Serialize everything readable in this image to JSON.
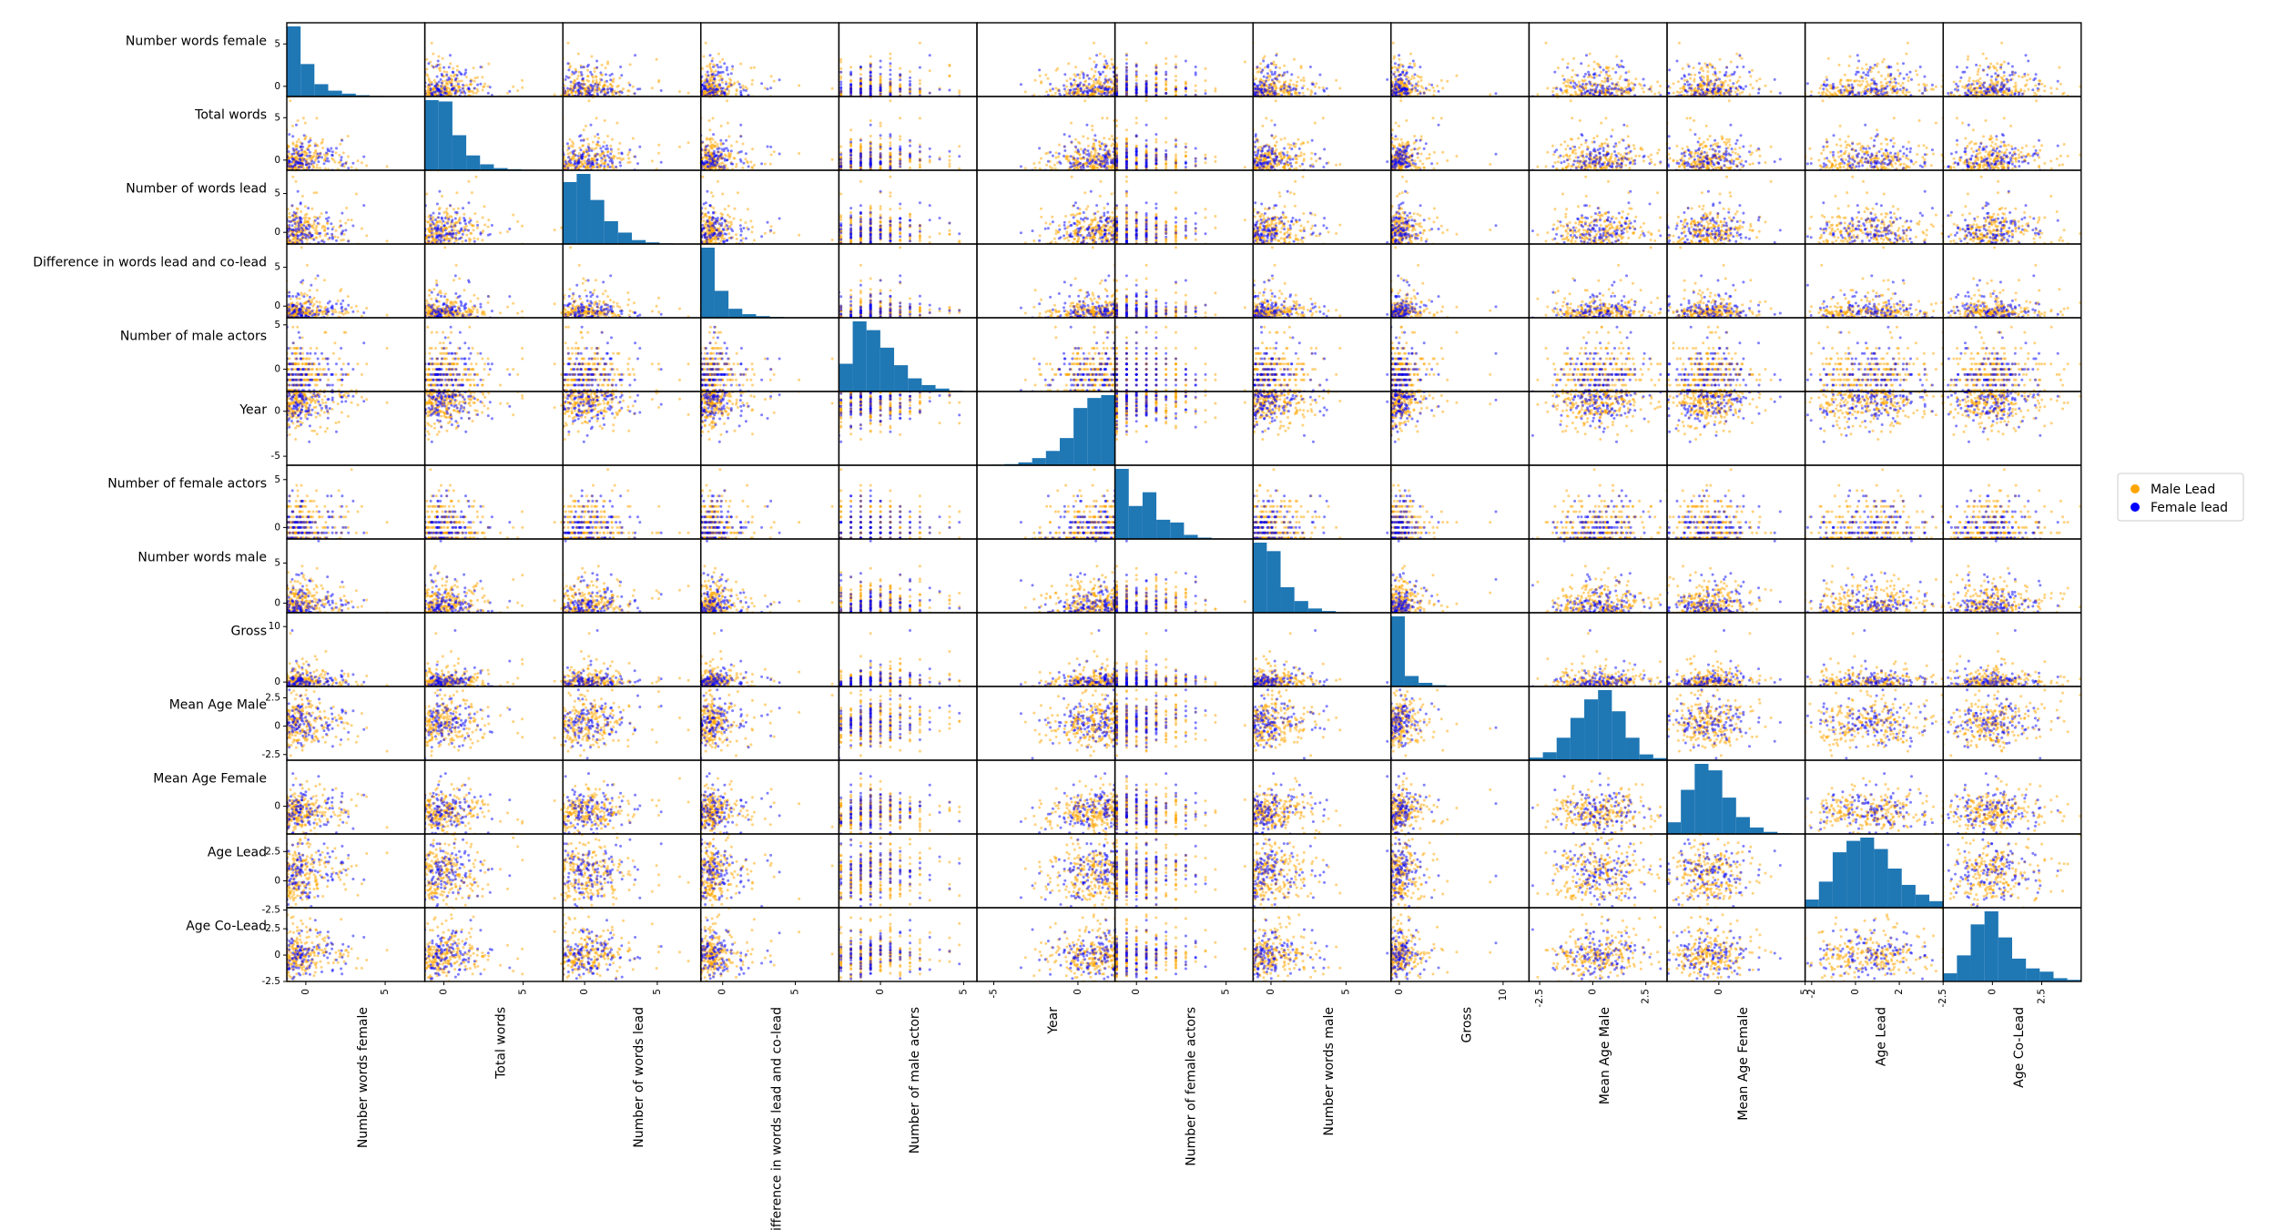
{
  "chart_data": {
    "type": "scatter",
    "title": "",
    "variables": [
      {
        "name": "Number words female",
        "range": [
          -1.2,
          7.5
        ],
        "row_ticks": [
          0,
          5
        ],
        "col_ticks": [
          0,
          5
        ]
      },
      {
        "name": "Total words",
        "range": [
          -1.2,
          7.5
        ],
        "row_ticks": [
          0,
          5
        ],
        "col_ticks": [
          0,
          5
        ]
      },
      {
        "name": "Number of words lead",
        "range": [
          -1.5,
          8.0
        ],
        "row_ticks": [
          0,
          5
        ],
        "col_ticks": [
          0,
          5
        ]
      },
      {
        "name": "Difference in words lead and co-lead",
        "range": [
          -1.5,
          8.0
        ],
        "row_ticks": [
          0,
          5
        ],
        "col_ticks": [
          0,
          5
        ]
      },
      {
        "name": "Number of male actors",
        "range": [
          -2.5,
          5.8
        ],
        "row_ticks": [
          0,
          5
        ],
        "col_ticks": [
          0,
          5
        ]
      },
      {
        "name": "Year",
        "range": [
          -6.0,
          2.2
        ],
        "row_ticks": [
          -5,
          0
        ],
        "col_ticks": [
          -5,
          0
        ]
      },
      {
        "name": "Number of female actors",
        "range": [
          -1.2,
          6.5
        ],
        "row_ticks": [
          0,
          5
        ],
        "col_ticks": [
          0,
          5
        ]
      },
      {
        "name": "Number words male",
        "range": [
          -1.2,
          8.0
        ],
        "row_ticks": [
          0,
          5
        ],
        "col_ticks": [
          0,
          5
        ]
      },
      {
        "name": "Gross",
        "range": [
          -0.8,
          12.5
        ],
        "row_ticks": [
          0,
          10
        ],
        "col_ticks": [
          0,
          10
        ]
      },
      {
        "name": "Mean Age Male",
        "range": [
          -3.0,
          3.5
        ],
        "row_ticks": [
          -2.5,
          0.0,
          2.5
        ],
        "col_ticks": [
          -2.5,
          0.0,
          2.5
        ]
      },
      {
        "name": "Mean Age Female",
        "range": [
          -3.0,
          5.0
        ],
        "row_ticks": [
          0
        ],
        "col_ticks": [
          0,
          5
        ]
      },
      {
        "name": "Age Lead",
        "range": [
          -2.3,
          4.0
        ],
        "row_ticks": [
          -2.5,
          0.0,
          2.5
        ],
        "col_ticks": [
          -2,
          0,
          2
        ]
      },
      {
        "name": "Age Co-Lead",
        "range": [
          -2.5,
          4.5
        ],
        "row_ticks": [
          -2.5,
          0.0,
          2.5
        ],
        "col_ticks": [
          -2.5,
          0.0,
          2.5
        ]
      }
    ],
    "diagonal": "histogram",
    "hist_bins": 10,
    "hist_counts": [
      [
        540,
        250,
        95,
        45,
        22,
        10,
        5,
        3,
        1,
        1
      ],
      [
        260,
        255,
        130,
        55,
        22,
        8,
        4,
        2,
        1,
        1
      ],
      [
        190,
        215,
        135,
        70,
        35,
        12,
        5,
        2,
        1,
        1
      ],
      [
        430,
        165,
        55,
        22,
        10,
        5,
        2,
        1,
        1,
        1
      ],
      [
        95,
        240,
        210,
        150,
        90,
        45,
        22,
        10,
        3,
        1
      ],
      [
        1,
        2,
        4,
        10,
        25,
        50,
        95,
        200,
        235,
        245
      ],
      [
        255,
        120,
        170,
        70,
        60,
        15,
        5,
        2,
        1,
        1
      ],
      [
        330,
        290,
        120,
        55,
        20,
        8,
        3,
        1,
        1,
        1
      ],
      [
        770,
        115,
        40,
        14,
        5,
        2,
        1,
        1,
        1,
        1
      ],
      [
        10,
        30,
        85,
        160,
        230,
        265,
        185,
        85,
        22,
        8
      ],
      [
        45,
        170,
        270,
        245,
        140,
        65,
        25,
        8,
        3,
        1
      ],
      [
        25,
        80,
        170,
        205,
        215,
        180,
        120,
        70,
        40,
        20
      ],
      [
        25,
        80,
        175,
        215,
        135,
        70,
        40,
        30,
        10,
        5
      ]
    ],
    "series": [
      {
        "name": "Male Lead",
        "color": "#ffa500"
      },
      {
        "name": "Female lead",
        "color": "#0000ff"
      }
    ],
    "points_per_series": {
      "Male Lead": 240,
      "Female lead": 110
    },
    "marker_alpha": 0.5,
    "legend_position": "right"
  }
}
